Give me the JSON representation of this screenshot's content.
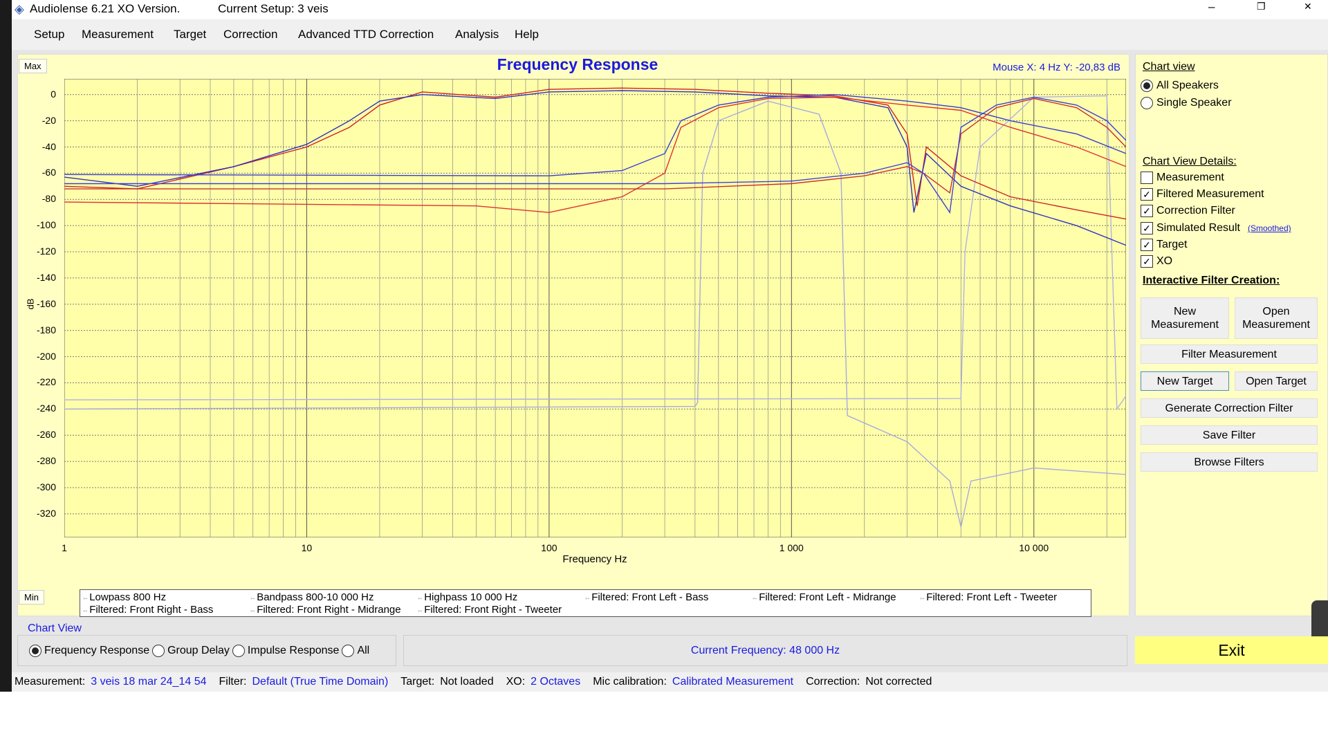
{
  "window": {
    "title": "Audiolense 6.21 XO Version.",
    "setup": "Current Setup: 3 veis",
    "minimize": "–",
    "restore": "❐",
    "close": "✕"
  },
  "menu": [
    "Setup",
    "Measurement",
    "Target",
    "Correction",
    "Advanced TTD Correction",
    "Analysis",
    "Help"
  ],
  "chart": {
    "title": "Frequency Response",
    "mouse_readout": "Mouse X: 4 Hz   Y: -20,83 dB",
    "max_label": "Max",
    "min_label": "Min",
    "xlabel": "Frequency Hz",
    "ylabel": "dB",
    "xticks": [
      "1",
      "10",
      "100",
      "1 000",
      "10 000"
    ],
    "yticks": [
      "0",
      "-20",
      "-40",
      "-60",
      "-80",
      "-100",
      "-120",
      "-140",
      "-160",
      "-180",
      "-200",
      "-220",
      "-240",
      "-260",
      "-280",
      "-300",
      "-320"
    ],
    "legend": [
      "Lowpass  800 Hz",
      "Bandpass   800-10 000 Hz",
      "Highpass  10 000 Hz",
      "Filtered: Front Left - Bass",
      "Filtered: Front Left - Midrange",
      "Filtered: Front Left - Tweeter",
      "Filtered: Front Right - Bass",
      "Filtered: Front Right - Midrange",
      "Filtered: Front Right - Tweeter"
    ]
  },
  "chart_data": {
    "type": "line",
    "xscale": "log",
    "xlim": [
      1,
      24000
    ],
    "ylim": [
      -338,
      12
    ],
    "grid": true,
    "series": [
      {
        "name": "Lowpass  800 Hz",
        "color": "#a8a8e0",
        "points": [
          [
            1,
            -240
          ],
          [
            400,
            -238
          ],
          [
            410,
            -235
          ],
          [
            430,
            -60
          ],
          [
            500,
            -20
          ],
          [
            800,
            -5
          ],
          [
            1300,
            -15
          ],
          [
            1600,
            -60
          ],
          [
            1700,
            -245
          ],
          [
            3000,
            -265
          ],
          [
            4500,
            -295
          ],
          [
            5000,
            -330
          ],
          [
            5500,
            -295
          ],
          [
            10000,
            -285
          ],
          [
            24000,
            -290
          ]
        ]
      },
      {
        "name": "Bandpass   800-10 000 Hz",
        "color": "#b0b0e8",
        "points": [
          [
            1,
            -233
          ],
          [
            5000,
            -232
          ],
          [
            5200,
            -120
          ],
          [
            6000,
            -40
          ],
          [
            10000,
            -2
          ],
          [
            20000,
            -1
          ],
          [
            22000,
            -240
          ],
          [
            24000,
            -230
          ]
        ]
      },
      {
        "name": "Filtered: Front Right - Bass",
        "color": "#d02020",
        "points": [
          [
            1,
            -70
          ],
          [
            2,
            -72
          ],
          [
            5,
            -55
          ],
          [
            10,
            -40
          ],
          [
            15,
            -25
          ],
          [
            20,
            -8
          ],
          [
            30,
            2
          ],
          [
            60,
            -2
          ],
          [
            100,
            4
          ],
          [
            200,
            5
          ],
          [
            400,
            4
          ],
          [
            800,
            1
          ],
          [
            1500,
            -1
          ],
          [
            2500,
            -8
          ],
          [
            3000,
            -30
          ],
          [
            3300,
            -85
          ],
          [
            3600,
            -40
          ],
          [
            5000,
            -62
          ],
          [
            8000,
            -78
          ],
          [
            15000,
            -88
          ],
          [
            24000,
            -95
          ]
        ]
      },
      {
        "name": "Filtered: Front Left - Bass",
        "color": "#3030c0",
        "points": [
          [
            1,
            -63
          ],
          [
            2,
            -70
          ],
          [
            5,
            -55
          ],
          [
            10,
            -38
          ],
          [
            15,
            -20
          ],
          [
            20,
            -5
          ],
          [
            30,
            0
          ],
          [
            60,
            -3
          ],
          [
            100,
            2
          ],
          [
            200,
            3
          ],
          [
            400,
            2
          ],
          [
            800,
            -1
          ],
          [
            1500,
            -2
          ],
          [
            2500,
            -10
          ],
          [
            3000,
            -40
          ],
          [
            3200,
            -90
          ],
          [
            3600,
            -45
          ],
          [
            5000,
            -70
          ],
          [
            8000,
            -85
          ],
          [
            15000,
            -100
          ],
          [
            24000,
            -115
          ]
        ]
      },
      {
        "name": "Filtered: Front Right - Midrange",
        "color": "#e03030",
        "points": [
          [
            1,
            -82
          ],
          [
            50,
            -85
          ],
          [
            100,
            -90
          ],
          [
            200,
            -78
          ],
          [
            300,
            -60
          ],
          [
            350,
            -25
          ],
          [
            500,
            -10
          ],
          [
            800,
            -3
          ],
          [
            1500,
            -2
          ],
          [
            3000,
            -8
          ],
          [
            5000,
            -12
          ],
          [
            8000,
            -25
          ],
          [
            15000,
            -40
          ],
          [
            24000,
            -55
          ]
        ]
      },
      {
        "name": "Filtered: Front Left - Midrange",
        "color": "#3a3ad0",
        "points": [
          [
            1,
            -61
          ],
          [
            100,
            -62
          ],
          [
            200,
            -58
          ],
          [
            300,
            -45
          ],
          [
            350,
            -20
          ],
          [
            500,
            -8
          ],
          [
            800,
            -2
          ],
          [
            1500,
            0
          ],
          [
            3000,
            -5
          ],
          [
            5000,
            -10
          ],
          [
            8000,
            -20
          ],
          [
            15000,
            -30
          ],
          [
            24000,
            -45
          ]
        ]
      },
      {
        "name": "Filtered: Front Right - Tweeter",
        "color": "#c83030",
        "points": [
          [
            1,
            -72
          ],
          [
            300,
            -72
          ],
          [
            1000,
            -68
          ],
          [
            2000,
            -62
          ],
          [
            3000,
            -55
          ],
          [
            3500,
            -60
          ],
          [
            4500,
            -75
          ],
          [
            5000,
            -30
          ],
          [
            7000,
            -10
          ],
          [
            10000,
            -3
          ],
          [
            15000,
            -10
          ],
          [
            20000,
            -25
          ],
          [
            24000,
            -40
          ]
        ]
      },
      {
        "name": "Filtered: Front Left - Tweeter",
        "color": "#4040d8",
        "points": [
          [
            1,
            -68
          ],
          [
            300,
            -68
          ],
          [
            1000,
            -66
          ],
          [
            2000,
            -60
          ],
          [
            3000,
            -52
          ],
          [
            3500,
            -60
          ],
          [
            4500,
            -90
          ],
          [
            5000,
            -25
          ],
          [
            7000,
            -8
          ],
          [
            10000,
            -2
          ],
          [
            15000,
            -8
          ],
          [
            20000,
            -20
          ],
          [
            24000,
            -35
          ]
        ]
      }
    ]
  },
  "right": {
    "chart_view_label": "Chart view",
    "view_options": [
      {
        "label": "All Speakers",
        "selected": true
      },
      {
        "label": "Single Speaker",
        "selected": false
      }
    ],
    "details_label": "Chart View Details:",
    "details": [
      {
        "label": "Measurement",
        "checked": false
      },
      {
        "label": "Filtered Measurement",
        "checked": true
      },
      {
        "label": "Correction Filter",
        "checked": true
      },
      {
        "label": "Simulated Result",
        "checked": true
      },
      {
        "label": "Target",
        "checked": true
      },
      {
        "label": "XO",
        "checked": true
      }
    ],
    "smoothed": "(Smoothed)",
    "interactive_label": "Interactive Filter Creation:",
    "buttons": {
      "new_measurement": "New Measurement",
      "open_measurement": "Open Measurement",
      "filter_measurement": "Filter Measurement",
      "new_target": "New Target",
      "open_target": "Open Target",
      "generate": "Generate Correction Filter",
      "save": "Save Filter",
      "browse": "Browse Filters"
    }
  },
  "bottom": {
    "chart_view_label": "Chart View",
    "modes": [
      {
        "label": "Frequency Response",
        "selected": true
      },
      {
        "label": "Group Delay",
        "selected": false
      },
      {
        "label": "Impulse Response",
        "selected": false
      },
      {
        "label": "All",
        "selected": false
      }
    ],
    "current_frequency": "Current Frequency: 48 000 Hz",
    "exit": "Exit"
  },
  "status": {
    "measurement_label": "Measurement:",
    "measurement": "3 veis 18 mar 24_14 54",
    "filter_label": "Filter:",
    "filter": "Default (True Time Domain)",
    "target_label": "Target:",
    "target": "Not loaded",
    "xo_label": "XO:",
    "xo": "2 Octaves",
    "mic_label": "Mic calibration:",
    "mic": "Calibrated Measurement",
    "correction_label": "Correction:",
    "correction": "Not corrected"
  }
}
